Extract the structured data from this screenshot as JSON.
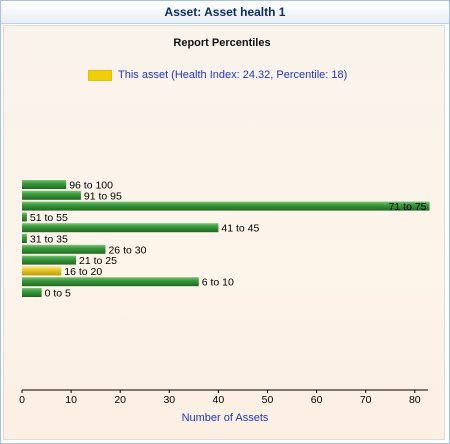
{
  "window": {
    "title": "Asset: Asset health 1"
  },
  "legend": {
    "label": "This asset (Health Index: 24.32, Percentile: 18)",
    "color": "#f0cf06"
  },
  "colors": {
    "bar": "#2f8a2f",
    "highlight": "#e6c200",
    "axis": "#000000",
    "link": "#1f36c9"
  },
  "chart_data": {
    "type": "bar",
    "orientation": "horizontal",
    "title": "Report Percentiles",
    "xlabel": "Number of Assets",
    "ylabel": "",
    "xlim": [
      0,
      83
    ],
    "xticks": [
      0,
      10,
      20,
      30,
      40,
      50,
      60,
      70,
      80
    ],
    "grid": false,
    "legend_position": "top-left",
    "categories": [
      "96 to 100",
      "91 to 95",
      "71 to 75",
      "51 to 55",
      "41 to 45",
      "31 to 35",
      "26 to 30",
      "21 to 25",
      "16 to 20",
      "6 to 10",
      "0 to 5"
    ],
    "values": [
      9,
      12,
      83,
      1,
      40,
      1,
      17,
      11,
      8,
      36,
      4
    ],
    "highlight_category": "16 to 20"
  }
}
